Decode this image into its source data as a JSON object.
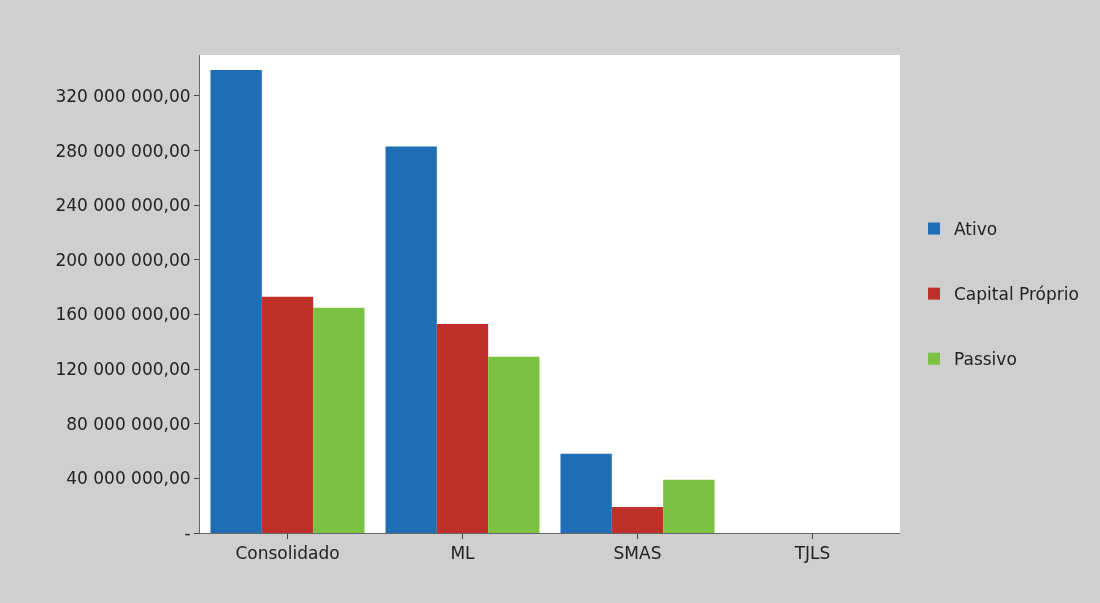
{
  "chart_data": {
    "type": "bar",
    "categories": [
      "Consolidado",
      "ML",
      "SMAS",
      "TJLS"
    ],
    "series": [
      {
        "name": "Ativo",
        "color": "#1f6db4",
        "values": [
          339000000,
          283000000,
          58000000,
          0
        ]
      },
      {
        "name": "Capital Próprio",
        "color": "#c0302b",
        "values": [
          173000000,
          153000000,
          19000000,
          0
        ]
      },
      {
        "name": "Passivo",
        "color": "#7cc242",
        "values": [
          165000000,
          129000000,
          39000000,
          0
        ]
      }
    ],
    "ylim": [
      0,
      350000000
    ],
    "yticks": [
      {
        "value": 0,
        "label": "-"
      },
      {
        "value": 40000000,
        "label": "40 000 000,00"
      },
      {
        "value": 80000000,
        "label": "80 000 000,00"
      },
      {
        "value": 120000000,
        "label": "120 000 000,00"
      },
      {
        "value": 160000000,
        "label": "160 000 000,00"
      },
      {
        "value": 200000000,
        "label": "200 000 000,00"
      },
      {
        "value": 240000000,
        "label": "240 000 000,00"
      },
      {
        "value": 280000000,
        "label": "280 000 000,00"
      },
      {
        "value": 320000000,
        "label": "320 000 000,00"
      }
    ],
    "legend": "right"
  }
}
